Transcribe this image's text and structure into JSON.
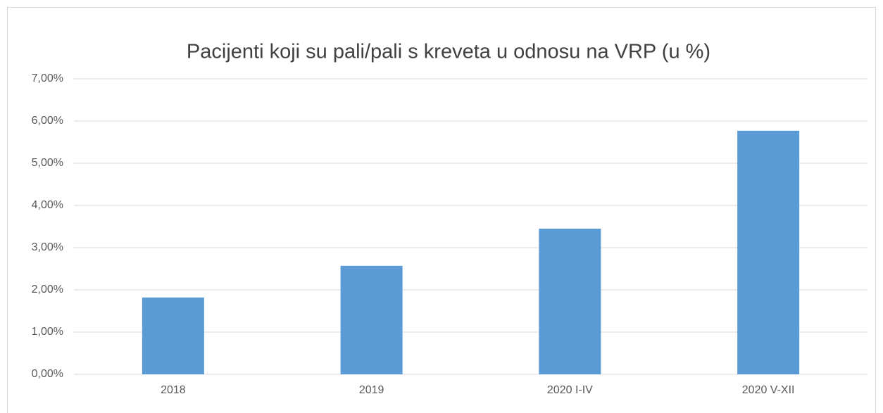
{
  "chart_data": {
    "type": "bar",
    "title": "Pacijenti koji su pali/pali s kreveta u odnosu na VRP (u %)",
    "categories": [
      "2018",
      "2019",
      "2020 I-IV",
      "2020 V-XII"
    ],
    "values": [
      1.82,
      2.57,
      3.45,
      5.77
    ],
    "color": "#5b9bd5",
    "ylim": [
      0,
      7
    ],
    "yticks": [
      {
        "value": 0,
        "label": "0,00%"
      },
      {
        "value": 1,
        "label": "1,00%"
      },
      {
        "value": 2,
        "label": "2,00%"
      },
      {
        "value": 3,
        "label": "3,00%"
      },
      {
        "value": 4,
        "label": "4,00%"
      },
      {
        "value": 5,
        "label": "5,00%"
      },
      {
        "value": 6,
        "label": "6,00%"
      },
      {
        "value": 7,
        "label": "7,00%"
      }
    ],
    "grid": true
  }
}
